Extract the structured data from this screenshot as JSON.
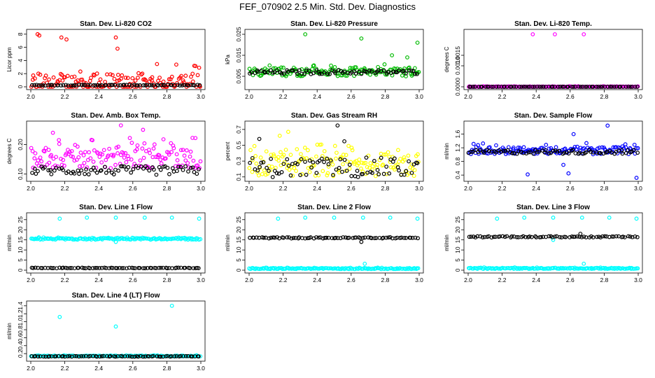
{
  "figure_title": "FEF_070902  2.5 Min. Std. Dev. Diagnostics",
  "chart_data": [
    {
      "type": "scatter",
      "title": "Stan. Dev. Li-820 CO2",
      "xlabel": "",
      "ylabel": "Licor ppm",
      "xlim": [
        2.0,
        3.0
      ],
      "ylim": [
        0,
        8.3
      ],
      "x_ticks": [
        "2.0",
        "2.2",
        "2.4",
        "2.6",
        "2.8",
        "3.0"
      ],
      "y_ticks": [
        "0",
        "2",
        "4",
        "6",
        "8"
      ],
      "series": [
        {
          "color": "#ff0000",
          "baseline": 0.5,
          "spread": 3.2,
          "outliers": [
            [
              2.04,
              8.0
            ],
            [
              2.05,
              7.8
            ],
            [
              2.18,
              7.5
            ],
            [
              2.21,
              7.2
            ],
            [
              2.5,
              7.5
            ],
            [
              2.51,
              5.8
            ],
            [
              2.99,
              2.9
            ]
          ]
        },
        {
          "color": "#000000",
          "baseline": 0.25,
          "spread": 0.1,
          "outliers": []
        }
      ]
    },
    {
      "type": "scatter",
      "title": "Stan. Dev. Li-820 Pressure",
      "xlabel": "",
      "ylabel": "kPa",
      "xlim": [
        2.0,
        3.0
      ],
      "ylim": [
        0,
        0.026
      ],
      "x_ticks": [
        "2.0",
        "2.2",
        "2.4",
        "2.6",
        "2.8",
        "3.0"
      ],
      "y_ticks": [
        "0.005",
        "0.015",
        "0.025"
      ],
      "series": [
        {
          "color": "#00bb00",
          "baseline": 0.007,
          "spread": 0.004,
          "outliers": [
            [
              2.33,
              0.025
            ],
            [
              2.66,
              0.023
            ],
            [
              2.99,
              0.021
            ],
            [
              2.84,
              0.015
            ],
            [
              2.93,
              0.014
            ]
          ]
        },
        {
          "color": "#000000",
          "baseline": 0.007,
          "spread": 0.002,
          "outliers": []
        }
      ]
    },
    {
      "type": "scatter",
      "title": "Stan. Dev. Li-820 Temp.",
      "xlabel": "",
      "ylabel": "degrees C",
      "xlim": [
        2.0,
        3.0
      ],
      "ylim": [
        0,
        0.0026
      ],
      "x_ticks": [
        "2.0",
        "2.2",
        "2.4",
        "2.6",
        "2.8",
        "3.0"
      ],
      "y_ticks": [
        "0.0000",
        "0.0010",
        "0.0015"
      ],
      "series": [
        {
          "color": "#ff00ff",
          "baseline": 0.0,
          "spread": 3e-05,
          "outliers": [
            [
              2.38,
              0.0025
            ],
            [
              2.51,
              0.0025
            ],
            [
              2.68,
              0.0025
            ]
          ]
        },
        {
          "color": "#000000",
          "baseline": 0.0,
          "spread": 1e-05,
          "outliers": []
        }
      ]
    },
    {
      "type": "scatter",
      "title": "Stan. Dev. Amb. Box Temp.",
      "xlabel": "",
      "ylabel": "degrees C",
      "xlim": [
        2.0,
        3.0
      ],
      "ylim": [
        0.085,
        0.27
      ],
      "x_ticks": [
        "2.0",
        "2.2",
        "2.4",
        "2.6",
        "2.8",
        "3.0"
      ],
      "y_ticks": [
        "0.10",
        "0.20"
      ],
      "series": [
        {
          "color": "#ff00ff",
          "baseline": 0.155,
          "spread": 0.07,
          "outliers": [
            [
              2.53,
              0.265
            ],
            [
              2.66,
              0.25
            ],
            [
              2.13,
              0.24
            ]
          ]
        },
        {
          "color": "#000000",
          "baseline": 0.112,
          "spread": 0.03,
          "outliers": []
        }
      ]
    },
    {
      "type": "scatter",
      "title": "Stan. Dev. Gas Stream RH",
      "xlabel": "",
      "ylabel": "percent",
      "xlim": [
        2.0,
        3.0
      ],
      "ylim": [
        0.08,
        0.77
      ],
      "x_ticks": [
        "2.0",
        "2.2",
        "2.4",
        "2.6",
        "2.8",
        "3.0"
      ],
      "y_ticks": [
        "0.1",
        "0.3",
        "0.5",
        "0.7"
      ],
      "series": [
        {
          "color": "#ffff00",
          "baseline": 0.25,
          "spread": 0.28,
          "outliers": [
            [
              2.23,
              0.67
            ],
            [
              2.18,
              0.62
            ]
          ]
        },
        {
          "color": "#000000",
          "baseline": 0.22,
          "spread": 0.25,
          "outliers": [
            [
              2.52,
              0.75
            ],
            [
              2.06,
              0.58
            ],
            [
              2.56,
              0.55
            ]
          ]
        }
      ]
    },
    {
      "type": "scatter",
      "title": "Stan. Dev. Sample Flow",
      "xlabel": "",
      "ylabel": "ml/min",
      "xlim": [
        2.0,
        3.0
      ],
      "ylim": [
        0.3,
        1.9
      ],
      "x_ticks": [
        "2.0",
        "2.2",
        "2.4",
        "2.6",
        "2.8",
        "3.0"
      ],
      "y_ticks": [
        "0.4",
        "0.8",
        "1.2",
        "1.6"
      ],
      "series": [
        {
          "color": "#0000ff",
          "baseline": 1.12,
          "spread": 0.22,
          "outliers": [
            [
              2.82,
              1.85
            ],
            [
              2.62,
              1.6
            ],
            [
              2.59,
              0.45
            ],
            [
              2.56,
              0.7
            ],
            [
              2.99,
              0.32
            ],
            [
              2.35,
              0.42
            ]
          ]
        },
        {
          "color": "#000000",
          "baseline": 1.08,
          "spread": 0.12,
          "outliers": []
        }
      ]
    },
    {
      "type": "scatter",
      "title": "Stan. Dev. Line 1 Flow",
      "xlabel": "",
      "ylabel": "ml/min",
      "xlim": [
        2.0,
        3.0
      ],
      "ylim": [
        0,
        27
      ],
      "x_ticks": [
        "2.0",
        "2.2",
        "2.4",
        "2.6",
        "2.8",
        "3.0"
      ],
      "y_ticks": [
        "0",
        "5",
        "10",
        "15",
        "20",
        "25"
      ],
      "series": [
        {
          "color": "#00ffff",
          "baseline": 15.5,
          "spread": 0.8,
          "outliers": [
            [
              2.17,
              25.5
            ],
            [
              2.33,
              26
            ],
            [
              2.5,
              26
            ],
            [
              2.67,
              26
            ],
            [
              2.83,
              26
            ],
            [
              2.99,
              25.5
            ],
            [
              2.5,
              14
            ]
          ]
        },
        {
          "color": "#000000",
          "baseline": 1.1,
          "spread": 0.3,
          "outliers": []
        }
      ]
    },
    {
      "type": "scatter",
      "title": "Stan. Dev. Line 2 Flow",
      "xlabel": "",
      "ylabel": "ml/min",
      "xlim": [
        2.0,
        3.0
      ],
      "ylim": [
        0,
        27
      ],
      "x_ticks": [
        "2.0",
        "2.2",
        "2.4",
        "2.6",
        "2.8",
        "3.0"
      ],
      "y_ticks": [
        "0",
        "5",
        "10",
        "15",
        "20",
        "25"
      ],
      "series": [
        {
          "color": "#00ffff",
          "baseline": 0.8,
          "spread": 0.5,
          "outliers": [
            [
              2.17,
              25.5
            ],
            [
              2.33,
              26
            ],
            [
              2.5,
              26
            ],
            [
              2.67,
              26
            ],
            [
              2.83,
              26
            ],
            [
              2.99,
              25.5
            ],
            [
              2.68,
              3.2
            ]
          ]
        },
        {
          "color": "#000000",
          "baseline": 16,
          "spread": 0.6,
          "outliers": [
            [
              2.66,
              14
            ]
          ]
        }
      ]
    },
    {
      "type": "scatter",
      "title": "Stan. Dev. Line 3 Flow",
      "xlabel": "",
      "ylabel": "ml/min",
      "xlim": [
        2.0,
        3.0
      ],
      "ylim": [
        0,
        27
      ],
      "x_ticks": [
        "2.0",
        "2.2",
        "2.4",
        "2.6",
        "2.8",
        "3.0"
      ],
      "y_ticks": [
        "0",
        "5",
        "10",
        "15",
        "20",
        "25"
      ],
      "series": [
        {
          "color": "#00ffff",
          "baseline": 0.9,
          "spread": 0.5,
          "outliers": [
            [
              2.17,
              25.5
            ],
            [
              2.33,
              26
            ],
            [
              2.5,
              26
            ],
            [
              2.67,
              26
            ],
            [
              2.83,
              26
            ],
            [
              2.99,
              25.5
            ],
            [
              2.68,
              3.2
            ],
            [
              2.5,
              15
            ]
          ]
        },
        {
          "color": "#000000",
          "baseline": 16.5,
          "spread": 0.6,
          "outliers": [
            [
              2.66,
              18
            ]
          ]
        }
      ]
    },
    {
      "type": "scatter",
      "title": "Stan. Dev. Line 4 (LT) Flow",
      "xlabel": "",
      "ylabel": "ml/min",
      "xlim": [
        2.0,
        3.0
      ],
      "ylim": [
        0.08,
        1.45
      ],
      "x_ticks": [
        "2.0",
        "2.2",
        "2.4",
        "2.6",
        "2.8",
        "3.0"
      ],
      "y_ticks": [
        "0.2",
        "0.4",
        "0.6",
        "0.8",
        "1.0",
        "1.2",
        "1.4"
      ],
      "series": [
        {
          "color": "#00ffff",
          "baseline": 0.14,
          "spread": 0.02,
          "outliers": [
            [
              2.17,
              1.12
            ],
            [
              2.5,
              0.88
            ],
            [
              2.83,
              1.4
            ]
          ]
        },
        {
          "color": "#000000",
          "baseline": 0.13,
          "spread": 0.015,
          "outliers": []
        }
      ]
    }
  ]
}
